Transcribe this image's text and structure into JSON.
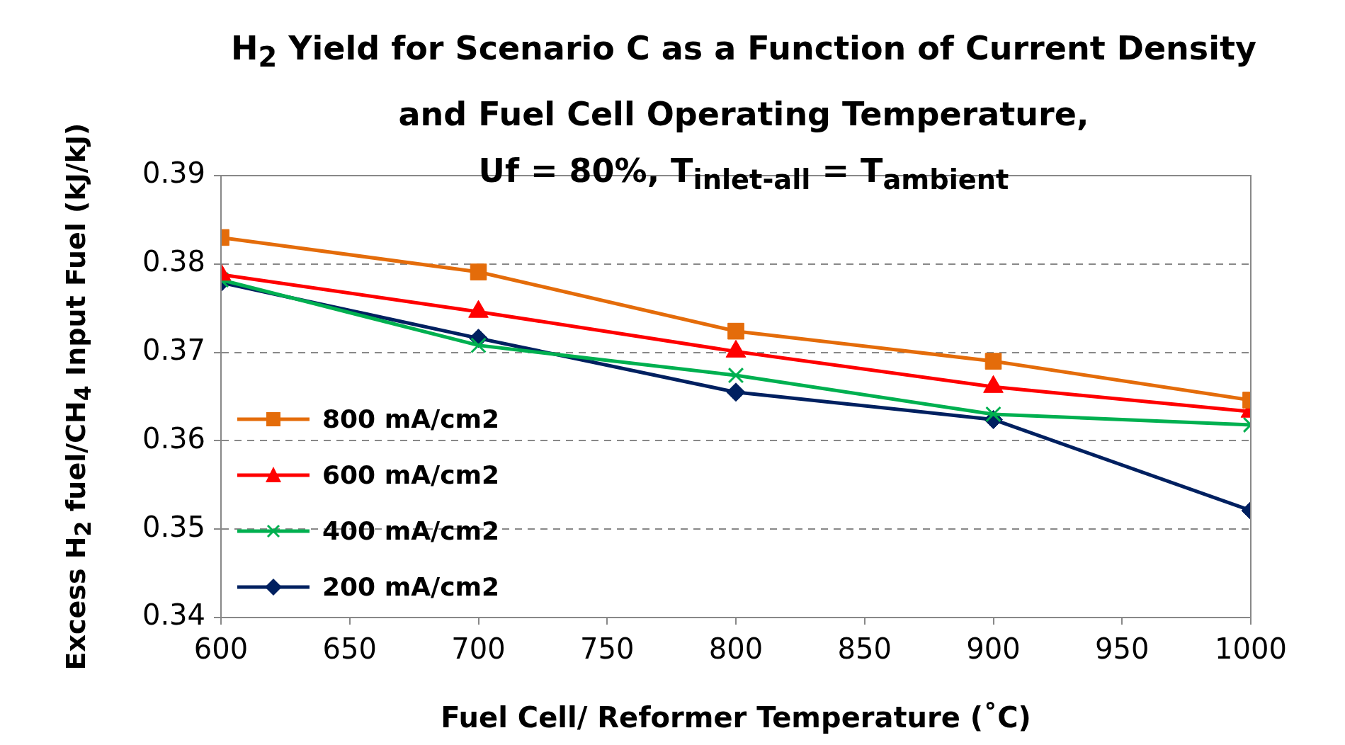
{
  "chart_data": {
    "type": "line",
    "title": "H$_{2}$ Yield for Scenario C as a Function of Current Density\nand Fuel Cell Operating Temperature,\nUf = 80%, T$_{inlet-all}$ = T$_{ambient}$",
    "xlabel": "Fuel Cell/ Reformer Temperature (˚C)",
    "ylabel": "Excess H$_{2}$ fuel/CH$_{4}$ Input Fuel (kJ/kJ)",
    "x": [
      600,
      700,
      800,
      900,
      1000
    ],
    "series": [
      {
        "name": "800 mA/cm2",
        "color": "#e46c0a",
        "marker": "square",
        "values": [
          0.383,
          0.3791,
          0.3724,
          0.369,
          0.3646
        ]
      },
      {
        "name": "600 mA/cm2",
        "color": "#ff0000",
        "marker": "triangle",
        "values": [
          0.3788,
          0.3746,
          0.3701,
          0.3661,
          0.3633
        ]
      },
      {
        "name": "400 mA/cm2",
        "color": "#00b050",
        "marker": "cross",
        "values": [
          0.3782,
          0.3708,
          0.3674,
          0.363,
          0.3618
        ]
      },
      {
        "name": "200 mA/cm2",
        "color": "#002060",
        "marker": "diamond",
        "values": [
          0.3779,
          0.3716,
          0.3655,
          0.3624,
          0.3521
        ]
      }
    ],
    "xlim": [
      600,
      1000
    ],
    "xticks": [
      600,
      650,
      700,
      750,
      800,
      850,
      900,
      950,
      1000
    ],
    "ylim": [
      0.34,
      0.39
    ],
    "yticks": [
      0.34,
      0.35,
      0.36,
      0.37,
      0.38,
      0.39
    ],
    "grid": "y",
    "line_style": "solid",
    "legend": "left"
  }
}
